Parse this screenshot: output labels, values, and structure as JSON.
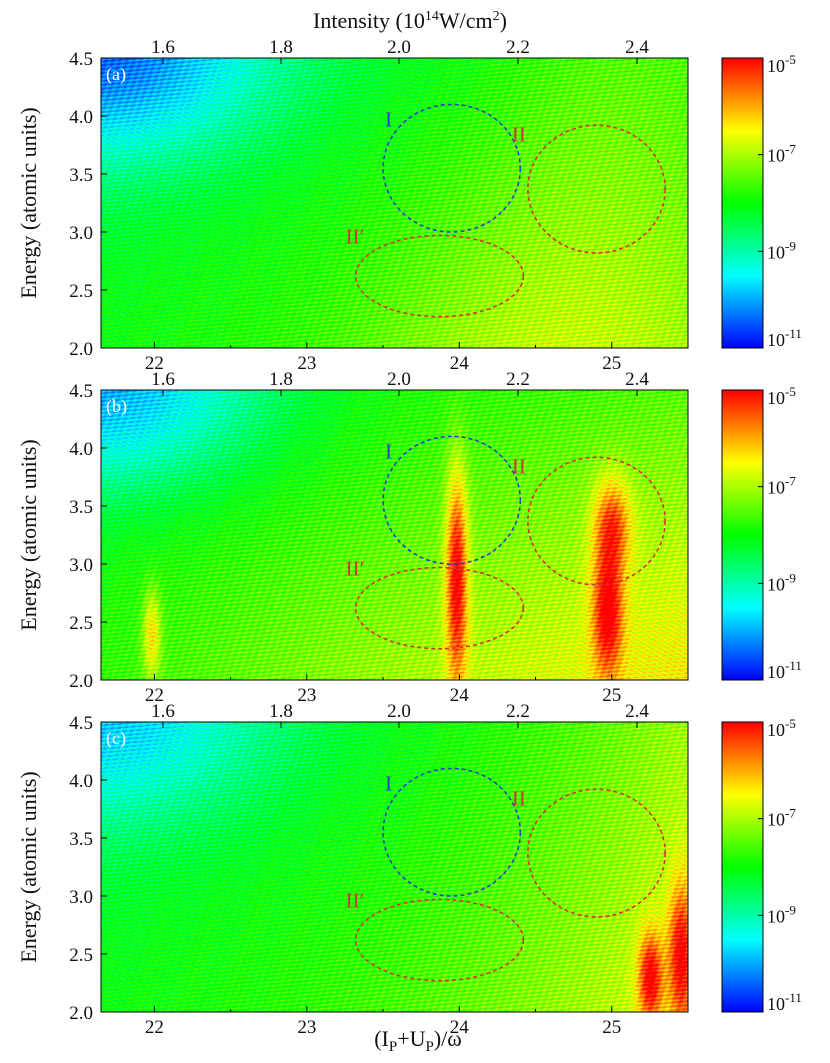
{
  "chart_data": [
    {
      "type": "heatmap",
      "panel_label": "(a)",
      "top_axis": {
        "label": "Intensity (10^14 W/cm^2)",
        "ticks": [
          "1.6",
          "1.8",
          "2.0",
          "2.2",
          "2.4"
        ]
      },
      "x": {
        "label": "",
        "range": [
          21.65,
          25.5
        ],
        "ticks": [
          "22",
          "23",
          "24",
          "25"
        ]
      },
      "y": {
        "label": "Energy (atomic units)",
        "range": [
          2.0,
          4.5
        ],
        "ticks": [
          "2.0",
          "2.5",
          "3.0",
          "3.5",
          "4.0",
          "4.5"
        ]
      },
      "colorbar": {
        "scale": "log",
        "range": [
          1e-11,
          1e-05
        ],
        "ticks": [
          "10^-5",
          "10^-7",
          "10^-9",
          "10^-11"
        ]
      },
      "regions": [
        {
          "label": "I",
          "color": "#2a3fc4",
          "center": [
            23.95,
            3.55
          ],
          "radii": [
            0.45,
            0.55
          ]
        },
        {
          "label": "II",
          "color": "#d03535",
          "center": [
            24.9,
            3.37
          ],
          "radii": [
            0.45,
            0.55
          ]
        },
        {
          "label": "II′",
          "color": "#d03535",
          "center": [
            23.87,
            2.62
          ],
          "radii": [
            0.55,
            0.35
          ]
        }
      ],
      "hotspots": []
    },
    {
      "type": "heatmap",
      "panel_label": "(b)",
      "top_axis": {
        "label": "",
        "ticks": [
          "1.6",
          "1.8",
          "2.0",
          "2.2",
          "2.4"
        ]
      },
      "x": {
        "label": "",
        "range": [
          21.65,
          25.5
        ],
        "ticks": [
          "22",
          "23",
          "24",
          "25"
        ]
      },
      "y": {
        "label": "Energy (atomic units)",
        "range": [
          2.0,
          4.5
        ],
        "ticks": [
          "2.0",
          "2.5",
          "3.0",
          "3.5",
          "4.0",
          "4.5"
        ]
      },
      "colorbar": {
        "scale": "log",
        "range": [
          1e-11,
          1e-05
        ],
        "ticks": [
          "10^-5",
          "10^-7",
          "10^-9",
          "10^-11"
        ]
      },
      "regions": [
        {
          "label": "I",
          "color": "#2a3fc4",
          "center": [
            23.95,
            3.55
          ],
          "radii": [
            0.45,
            0.55
          ]
        },
        {
          "label": "II",
          "color": "#d03535",
          "center": [
            24.9,
            3.37
          ],
          "radii": [
            0.45,
            0.55
          ]
        },
        {
          "label": "II′",
          "color": "#d03535",
          "center": [
            23.87,
            2.62
          ],
          "radii": [
            0.55,
            0.35
          ]
        }
      ],
      "hotspots": [
        {
          "x": 23.98,
          "y": 2.9,
          "sx": 0.07,
          "sy": 0.9,
          "w": 1.0
        },
        {
          "x": 24.97,
          "y": 2.6,
          "sx": 0.1,
          "sy": 0.55,
          "w": 0.9
        },
        {
          "x": 25.0,
          "y": 3.35,
          "sx": 0.12,
          "sy": 0.4,
          "w": 0.7
        },
        {
          "x": 21.98,
          "y": 2.4,
          "sx": 0.06,
          "sy": 0.4,
          "w": 0.55
        }
      ]
    },
    {
      "type": "heatmap",
      "panel_label": "(c)",
      "top_axis": {
        "label": "",
        "ticks": [
          "1.6",
          "1.8",
          "2.0",
          "2.2",
          "2.4"
        ]
      },
      "x": {
        "label": "(I_P+U_P)/ω",
        "range": [
          21.65,
          25.5
        ],
        "ticks": [
          "22",
          "23",
          "24",
          "25"
        ]
      },
      "y": {
        "label": "Energy (atomic units)",
        "range": [
          2.0,
          4.5
        ],
        "ticks": [
          "2.0",
          "2.5",
          "3.0",
          "3.5",
          "4.0",
          "4.5"
        ]
      },
      "colorbar": {
        "scale": "log",
        "range": [
          1e-11,
          1e-05
        ],
        "ticks": [
          "10^-5",
          "10^-7",
          "10^-9",
          "10^-11"
        ]
      },
      "regions": [
        {
          "label": "I",
          "color": "#2a3fc4",
          "center": [
            23.95,
            3.55
          ],
          "radii": [
            0.45,
            0.55
          ]
        },
        {
          "label": "II",
          "color": "#d03535",
          "center": [
            24.9,
            3.37
          ],
          "radii": [
            0.45,
            0.55
          ]
        },
        {
          "label": "II′",
          "color": "#d03535",
          "center": [
            23.87,
            2.62
          ],
          "radii": [
            0.55,
            0.35
          ]
        }
      ],
      "hotspots": [
        {
          "x": 25.25,
          "y": 2.3,
          "sx": 0.08,
          "sy": 0.4,
          "w": 0.85
        },
        {
          "x": 25.45,
          "y": 2.5,
          "sx": 0.08,
          "sy": 0.6,
          "w": 0.8
        }
      ]
    }
  ],
  "labels": {
    "top_title_main": "Intensity (10",
    "top_title_exp": "14",
    "top_title_unit": "W/cm",
    "top_title_unit_exp": "2",
    "top_title_close": ")",
    "y_title": "Energy (atomic units)",
    "bottom_title_open": "(I",
    "bottom_title_sub1": "P",
    "bottom_title_mid": "+U",
    "bottom_title_sub2": "P",
    "bottom_title_close": ")/ω",
    "cb_base": "10",
    "cb_exps": [
      "-5",
      "-7",
      "-9",
      "-11"
    ]
  },
  "colors": {
    "colormap": [
      "#0000ff",
      "#00ffff",
      "#00ff00",
      "#ffff00",
      "#ff0000"
    ],
    "region_blue": "#2a3fc4",
    "region_red": "#d03535"
  }
}
